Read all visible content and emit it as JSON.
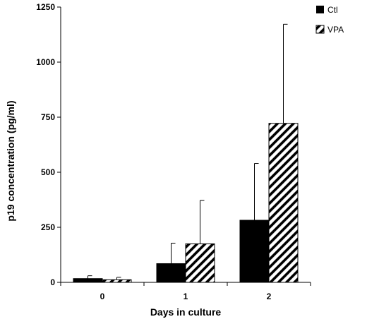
{
  "chart_data": {
    "type": "bar",
    "xlabel": "Days in culture",
    "ylabel": "p19 concentration (pg/ml)",
    "categories": [
      "0",
      "1",
      "2"
    ],
    "ylim": [
      0,
      1250
    ],
    "yticks": [
      "0",
      "250",
      "500",
      "750",
      "1000",
      "1250"
    ],
    "series": [
      {
        "name": "Ctl",
        "values": [
          17,
          85,
          282
        ],
        "errors": [
          13,
          93,
          258
        ],
        "fill": "solid",
        "color": "#000000"
      },
      {
        "name": "VPA",
        "values": [
          12,
          175,
          722
        ],
        "errors": [
          11,
          197,
          450
        ],
        "fill": "hatched",
        "color": "#000000"
      }
    ],
    "legend_position": "top-right",
    "grid": false
  }
}
